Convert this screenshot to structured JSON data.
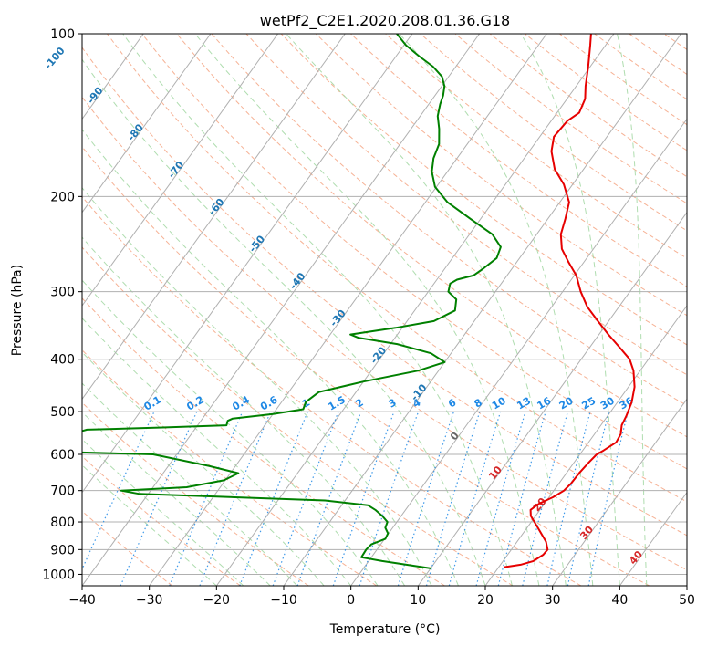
{
  "chart_data": {
    "type": "line",
    "title": "wetPf2_C2E1.2020.208.01.36.G18",
    "xlabel": "Temperature (°C)",
    "ylabel": "Pressure (hPa)",
    "xlim": [
      -40,
      50
    ],
    "ylim": [
      1050,
      100
    ],
    "y_scale": "log",
    "grid": true,
    "x_ticks": [
      -40,
      -30,
      -20,
      -10,
      0,
      10,
      20,
      30,
      40,
      50
    ],
    "y_ticks": [
      100,
      200,
      300,
      400,
      500,
      600,
      700,
      800,
      900,
      1000
    ],
    "isotherm_labels": [
      "-100",
      "-90",
      "-80",
      "-70",
      "-60",
      "-50",
      "-40",
      "-30",
      "-20",
      "-10",
      "0",
      "10",
      "20",
      "30",
      "40"
    ],
    "mixing_ratio_labels": [
      "0.1",
      "0.2",
      "0.4",
      "0.6",
      "1",
      "1.5",
      "2",
      "3",
      "4",
      "6",
      "8",
      "10",
      "13",
      "16",
      "20",
      "25",
      "30",
      "36"
    ],
    "colors": {
      "temperature": "#e60000",
      "dewpoint": "#008000",
      "isotherm_label": "#1f77b4",
      "isotherm_warm_label": "#d62728",
      "mixing_ratio": "#1e88e5",
      "dry_adiabat": "#f4a582",
      "moist_adiabat": "#a6d9a6",
      "grid": "#b0b0b0"
    },
    "series": [
      {
        "legend": "temperature",
        "points": [
          [
            20.8,
            970
          ],
          [
            23.0,
            960
          ],
          [
            24.5,
            945
          ],
          [
            25.3,
            920
          ],
          [
            25.4,
            900
          ],
          [
            24.3,
            870
          ],
          [
            21.6,
            820
          ],
          [
            19.3,
            780
          ],
          [
            18.6,
            760
          ],
          [
            19.2,
            740
          ],
          [
            20.6,
            720
          ],
          [
            21.5,
            700
          ],
          [
            21.8,
            680
          ],
          [
            21.9,
            650
          ],
          [
            22.2,
            620
          ],
          [
            22.5,
            600
          ],
          [
            23.1,
            590
          ],
          [
            24.1,
            570
          ],
          [
            23.9,
            550
          ],
          [
            23.1,
            530
          ],
          [
            22.8,
            510
          ],
          [
            22.1,
            480
          ],
          [
            20.9,
            450
          ],
          [
            19.0,
            420
          ],
          [
            17.2,
            400
          ],
          [
            14.4,
            380
          ],
          [
            11.4,
            360
          ],
          [
            8.4,
            340
          ],
          [
            5.3,
            320
          ],
          [
            2.7,
            300
          ],
          [
            0.3,
            280
          ],
          [
            -2.2,
            265
          ],
          [
            -4.7,
            250
          ],
          [
            -6.4,
            235
          ],
          [
            -7.4,
            220
          ],
          [
            -8.6,
            205
          ],
          [
            -11.3,
            190
          ],
          [
            -14.3,
            178
          ],
          [
            -16.7,
            165
          ],
          [
            -17.9,
            155
          ],
          [
            -17.6,
            145
          ],
          [
            -16.7,
            140
          ],
          [
            -17.3,
            132
          ],
          [
            -18.6,
            125
          ],
          [
            -20.3,
            115
          ],
          [
            -22.3,
            105
          ],
          [
            -23.4,
            100
          ]
        ]
      },
      {
        "legend": "dewpoint",
        "points": [
          [
            10.0,
            975
          ],
          [
            6.0,
            960
          ],
          [
            2.0,
            945
          ],
          [
            -1.5,
            930
          ],
          [
            -1.6,
            900
          ],
          [
            -1.4,
            880
          ],
          [
            0.1,
            860
          ],
          [
            -0.1,
            840
          ],
          [
            -1.1,
            820
          ],
          [
            -1.4,
            800
          ],
          [
            -2.8,
            780
          ],
          [
            -4.5,
            760
          ],
          [
            -6.1,
            745
          ],
          [
            -13.0,
            730
          ],
          [
            -41.3,
            710
          ],
          [
            -44.4,
            700
          ],
          [
            -35.0,
            690
          ],
          [
            -30.2,
            670
          ],
          [
            -28.8,
            650
          ],
          [
            -34.0,
            630
          ],
          [
            -43.5,
            600
          ],
          [
            -65.0,
            590
          ],
          [
            -56.0,
            540
          ],
          [
            -45.0,
            535
          ],
          [
            -35.7,
            530
          ],
          [
            -36.0,
            520
          ],
          [
            -35.5,
            515
          ],
          [
            -30.0,
            505
          ],
          [
            -26.0,
            495
          ],
          [
            -26.4,
            480
          ],
          [
            -25.5,
            460
          ],
          [
            -20.0,
            440
          ],
          [
            -13.0,
            420
          ],
          [
            -10.0,
            405
          ],
          [
            -13.0,
            390
          ],
          [
            -19.0,
            375
          ],
          [
            -25.5,
            365
          ],
          [
            -27.0,
            360
          ],
          [
            -21.0,
            350
          ],
          [
            -16.0,
            340
          ],
          [
            -14.0,
            325
          ],
          [
            -15.0,
            310
          ],
          [
            -17.0,
            300
          ],
          [
            -17.6,
            290
          ],
          [
            -17.0,
            285
          ],
          [
            -15.0,
            280
          ],
          [
            -14.3,
            272
          ],
          [
            -13.4,
            260
          ],
          [
            -14.0,
            248
          ],
          [
            -16.6,
            235
          ],
          [
            -21.5,
            220
          ],
          [
            -26.7,
            205
          ],
          [
            -30.2,
            192
          ],
          [
            -32.3,
            180
          ],
          [
            -33.5,
            170
          ],
          [
            -34.2,
            160
          ],
          [
            -35.8,
            150
          ],
          [
            -37.4,
            142
          ],
          [
            -38.3,
            135
          ],
          [
            -38.8,
            130
          ],
          [
            -39.6,
            125
          ],
          [
            -41.0,
            120
          ],
          [
            -43.4,
            115
          ],
          [
            -46.6,
            110
          ],
          [
            -49.7,
            105
          ],
          [
            -52.3,
            100
          ]
        ]
      }
    ]
  }
}
